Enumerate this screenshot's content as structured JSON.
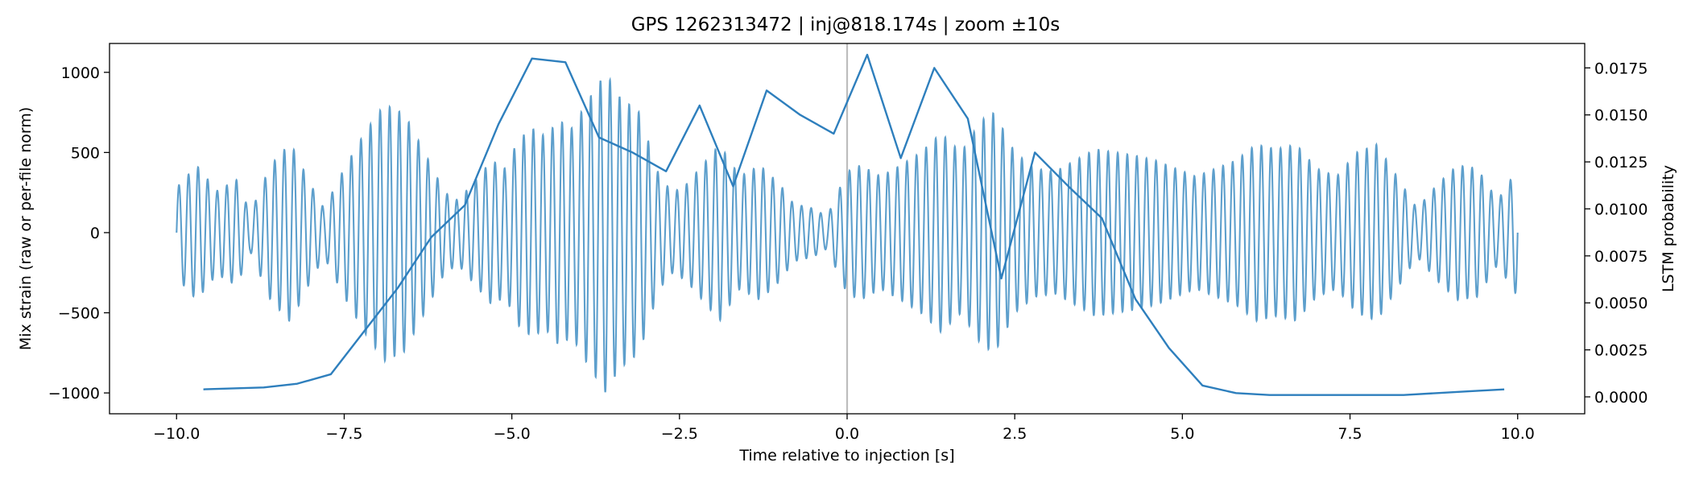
{
  "chart_data": {
    "type": "line",
    "title": "GPS 1262313472 | inj@818.174s | zoom ±10s",
    "xlabel": "Time relative to injection [s]",
    "ylabel_left": "Mix strain (raw or per-file norm)",
    "ylabel_right": "LSTM probability",
    "xlim": [
      -11.0,
      11.0
    ],
    "ylim_left": [
      -1130,
      1180
    ],
    "ylim_right": [
      -0.0009,
      0.0188
    ],
    "x_ticks": [
      -10.0,
      -7.5,
      -5.0,
      -2.5,
      0.0,
      2.5,
      5.0,
      7.5,
      10.0
    ],
    "x_tick_labels": [
      "−10.0",
      "−7.5",
      "−5.0",
      "−2.5",
      "0.0",
      "2.5",
      "5.0",
      "7.5",
      "10.0"
    ],
    "y_left_ticks": [
      -1000,
      -500,
      0,
      500,
      1000
    ],
    "y_left_tick_labels": [
      "−1000",
      "−500",
      "0",
      "500",
      "1000"
    ],
    "y_right_ticks": [
      0.0,
      0.0025,
      0.005,
      0.0075,
      0.01,
      0.0125,
      0.015,
      0.0175
    ],
    "y_right_tick_labels": [
      "0.0000",
      "0.0025",
      "0.0050",
      "0.0075",
      "0.0100",
      "0.0125",
      "0.0150",
      "0.0175"
    ],
    "injection_marker_x": 0.0,
    "series": [
      {
        "name": "Mix strain",
        "axis": "left",
        "color": "#5d9fcc",
        "carrier_frequency_hz": 7.0,
        "envelope": {
          "x": [
            -10.0,
            -9.7,
            -9.4,
            -9.1,
            -8.9,
            -8.6,
            -8.3,
            -8.0,
            -7.8,
            -7.5,
            -7.2,
            -6.9,
            -6.6,
            -6.3,
            -6.0,
            -5.8,
            -5.5,
            -5.3,
            -5.1,
            -4.9,
            -4.7,
            -4.5,
            -4.3,
            -4.1,
            -3.9,
            -3.6,
            -3.4,
            -3.1,
            -2.8,
            -2.6,
            -2.4,
            -2.2,
            -1.9,
            -1.6,
            -1.3,
            -1.0,
            -0.8,
            -0.5,
            -0.3,
            0.0,
            0.2,
            0.5,
            0.8,
            1.1,
            1.4,
            1.7,
            2.0,
            2.2,
            2.5,
            2.8,
            3.1,
            3.4,
            3.7,
            4.0,
            4.3,
            4.6,
            4.9,
            5.2,
            5.5,
            5.8,
            6.1,
            6.4,
            6.7,
            7.0,
            7.3,
            7.6,
            7.9,
            8.2,
            8.5,
            8.8,
            9.1,
            9.4,
            9.7,
            10.0
          ],
          "amplitude": [
            280,
            420,
            260,
            330,
            120,
            420,
            560,
            300,
            150,
            400,
            620,
            800,
            740,
            500,
            250,
            200,
            350,
            450,
            400,
            580,
            650,
            600,
            700,
            650,
            800,
            1000,
            850,
            750,
            350,
            250,
            300,
            400,
            550,
            350,
            420,
            300,
            180,
            150,
            100,
            380,
            420,
            350,
            420,
            500,
            620,
            500,
            700,
            750,
            500,
            400,
            380,
            450,
            520,
            500,
            480,
            450,
            400,
            350,
            400,
            450,
            550,
            520,
            550,
            400,
            350,
            500,
            550,
            350,
            150,
            300,
            420,
            400,
            200,
            400
          ]
        }
      },
      {
        "name": "LSTM probability",
        "axis": "right",
        "color": "#2e7fbd",
        "x": [
          -9.6,
          -8.7,
          -8.2,
          -7.7,
          -7.2,
          -6.7,
          -6.2,
          -5.7,
          -5.2,
          -4.7,
          -4.2,
          -3.7,
          -3.2,
          -2.7,
          -2.2,
          -1.7,
          -1.2,
          -0.7,
          -0.2,
          0.3,
          0.8,
          1.3,
          1.8,
          2.3,
          2.8,
          3.3,
          3.8,
          4.3,
          4.8,
          5.3,
          5.8,
          6.3,
          6.8,
          7.3,
          7.8,
          8.3,
          8.8,
          9.3,
          9.8
        ],
        "values": [
          0.0004,
          0.0005,
          0.0007,
          0.0012,
          0.0035,
          0.0058,
          0.0085,
          0.0102,
          0.0145,
          0.018,
          0.0178,
          0.0138,
          0.013,
          0.012,
          0.0155,
          0.0112,
          0.0163,
          0.015,
          0.014,
          0.0182,
          0.0127,
          0.0175,
          0.0148,
          0.0063,
          0.013,
          0.0112,
          0.0095,
          0.0052,
          0.0026,
          0.0006,
          0.0002,
          0.0001,
          0.0001,
          0.0001,
          0.0001,
          0.0001,
          0.0002,
          0.0003,
          0.0004
        ]
      }
    ]
  }
}
